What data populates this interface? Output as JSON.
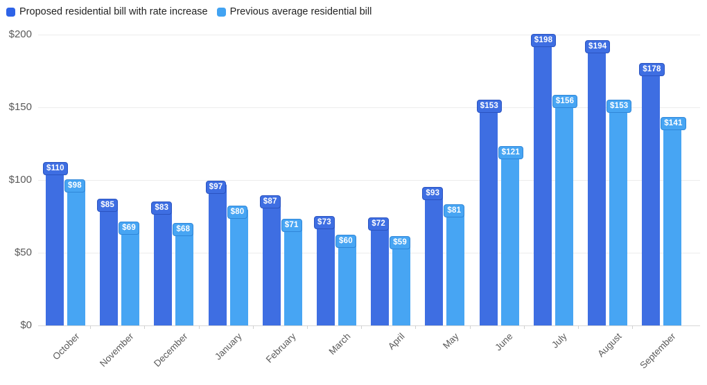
{
  "legend": {
    "items": [
      {
        "id": "proposed",
        "label": "Proposed residential bill with rate increase",
        "color": "#2e63e7"
      },
      {
        "id": "previous",
        "label": "Previous average residential bill",
        "color": "#42a3f2"
      }
    ]
  },
  "chart_data": {
    "type": "bar",
    "title": "",
    "xlabel": "",
    "ylabel": "",
    "value_prefix": "$",
    "categories": [
      "October",
      "November",
      "December",
      "January",
      "February",
      "March",
      "April",
      "May",
      "June",
      "July",
      "August",
      "September"
    ],
    "series": [
      {
        "name": "Proposed residential bill with rate increase",
        "color": "#3e6ee2",
        "badge_border": "#2a53c0",
        "values": [
          110,
          85,
          83,
          97,
          87,
          73,
          72,
          93,
          153,
          198,
          194,
          178
        ],
        "labels": [
          "$110",
          "$85",
          "$83",
          "$97",
          "$87",
          "$73",
          "$72",
          "$93",
          "$153",
          "$198",
          "$194",
          "$178"
        ]
      },
      {
        "name": "Previous average residential bill",
        "color": "#47a5f3",
        "badge_border": "#2f86d8",
        "values": [
          98,
          69,
          68,
          80,
          71,
          60,
          59,
          81,
          121,
          156,
          153,
          141
        ],
        "labels": [
          "$98",
          "$69",
          "$68",
          "$80",
          "$71",
          "$60",
          "$59",
          "$81",
          "$121",
          "$156",
          "$153",
          "$141"
        ]
      }
    ],
    "ylim": [
      0,
      200
    ],
    "y_ticks": [
      {
        "value": 0,
        "label": "$0"
      },
      {
        "value": 50,
        "label": "$50"
      },
      {
        "value": 100,
        "label": "$100"
      },
      {
        "value": 150,
        "label": "$150"
      },
      {
        "value": 200,
        "label": "$200"
      }
    ],
    "grid": true,
    "legend_position": "top-left"
  }
}
